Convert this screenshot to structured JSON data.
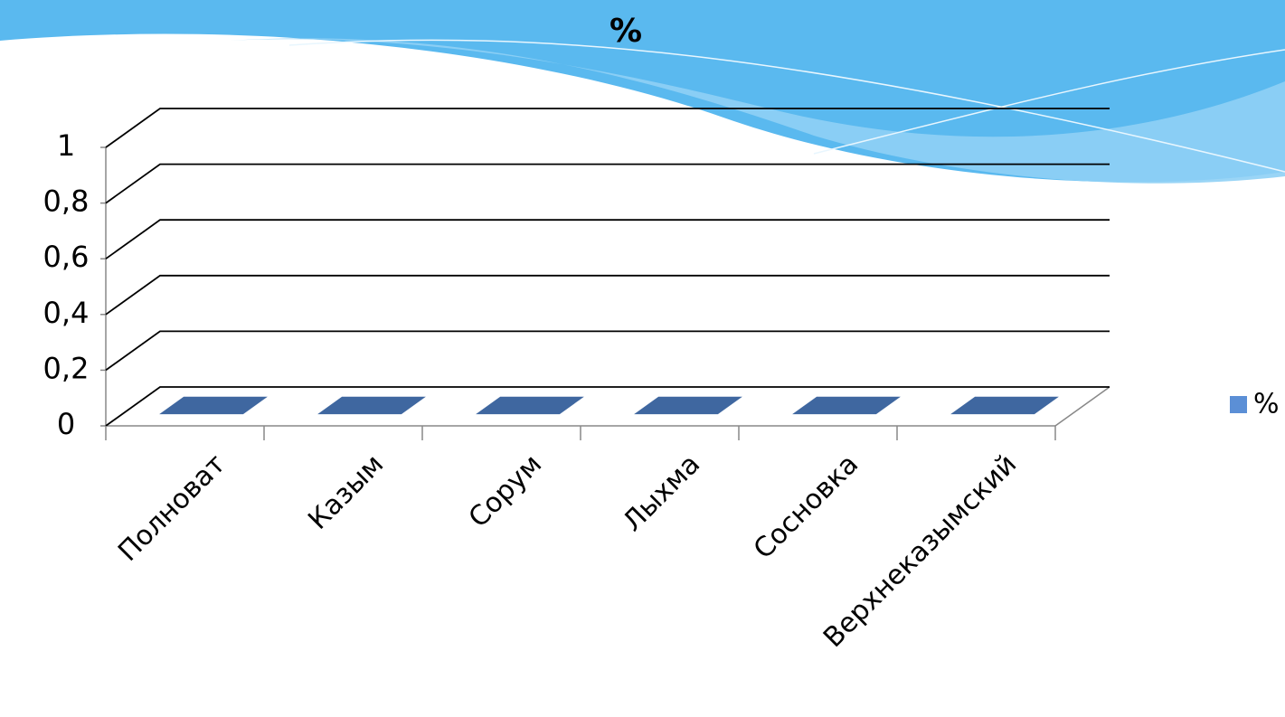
{
  "chart_data": {
    "type": "bar3d",
    "title": "%",
    "categories": [
      "Полноват",
      "Казым",
      "Сорум",
      "Лыхма",
      "Сосновка",
      "Верхнеказымский"
    ],
    "series": [
      {
        "name": "%",
        "color": "#3f67a0",
        "values": [
          0,
          0,
          0,
          0,
          0,
          0
        ]
      }
    ],
    "legend_color": "#5b8fd6",
    "ylim": [
      0,
      1
    ],
    "yticks": [
      0,
      {
        "value": 0.2,
        "label": "0,2"
      },
      {
        "value": 0.4,
        "label": "0,4"
      },
      {
        "value": 0.6,
        "label": "0,6"
      },
      {
        "value": 0.8,
        "label": "0,8"
      },
      1
    ],
    "grid": true,
    "legend": "right"
  }
}
